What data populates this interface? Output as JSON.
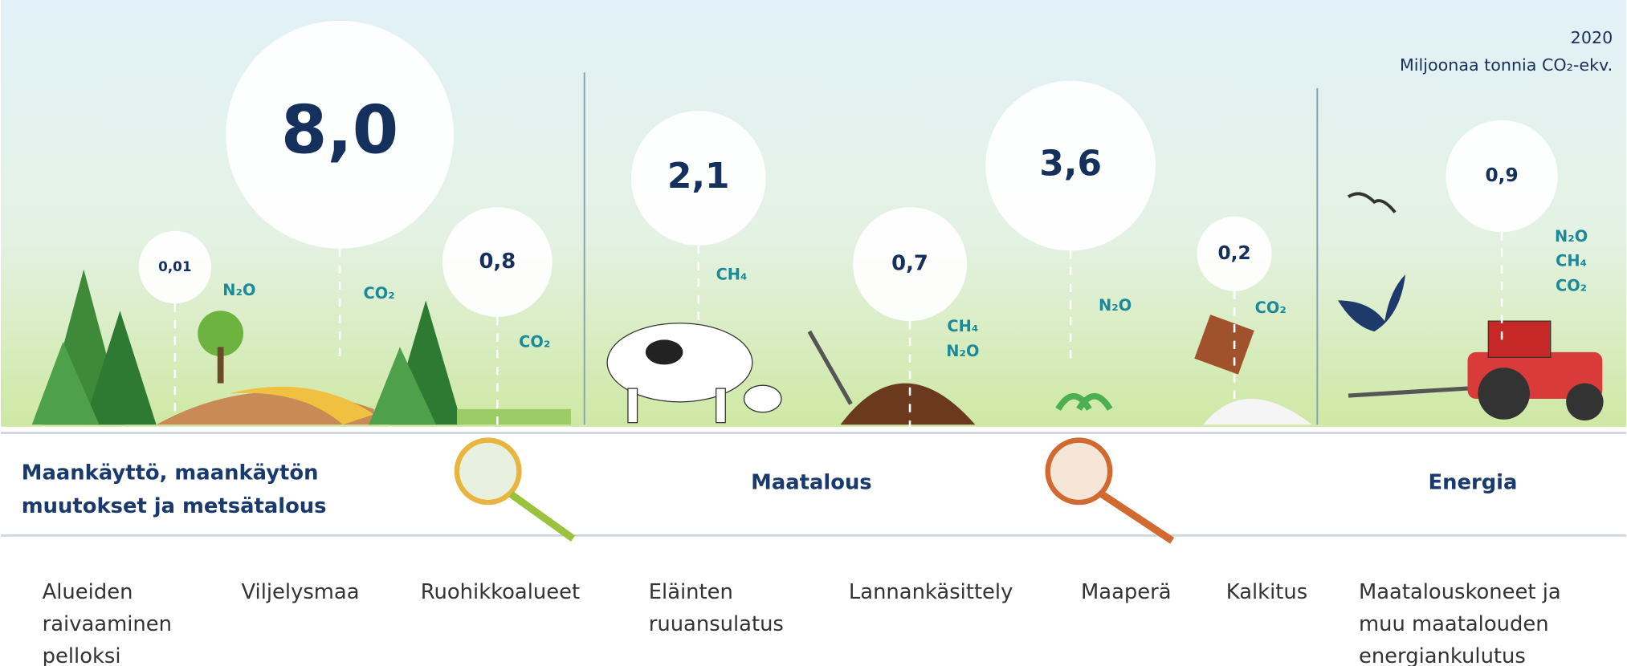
{
  "header": {
    "year": "2020",
    "unit": "Miljoonaa tonnia CO₂-ekv."
  },
  "sectors": [
    {
      "label_lines": [
        "Maankäyttö, maankäytön",
        "muutokset ja metsätalous"
      ]
    },
    {
      "label_lines": [
        "Maatalous"
      ]
    },
    {
      "label_lines": [
        "Energia"
      ]
    }
  ],
  "items": [
    {
      "value": "0,01",
      "gases": [
        "N₂O"
      ],
      "label_lines": [
        "Alueiden",
        "raivaaminen",
        "pelloksi"
      ]
    },
    {
      "value": "8,0",
      "gases": [
        "CO₂"
      ],
      "label_lines": [
        "Viljelysmaa"
      ]
    },
    {
      "value": "0,8",
      "gases": [
        "CO₂"
      ],
      "label_lines": [
        "Ruohikkoalueet"
      ]
    },
    {
      "value": "2,1",
      "gases": [
        "CH₄"
      ],
      "label_lines": [
        "Eläinten",
        "ruuansulatus"
      ]
    },
    {
      "value": "0,7",
      "gases": [
        "CH₄",
        "N₂O"
      ],
      "label_lines": [
        "Lannankäsittely"
      ]
    },
    {
      "value": "3,6",
      "gases": [
        "N₂O"
      ],
      "label_lines": [
        "Maaperä"
      ]
    },
    {
      "value": "0,2",
      "gases": [
        "CO₂"
      ],
      "label_lines": [
        "Kalkitus"
      ]
    },
    {
      "value": "0,9",
      "gases": [
        "N₂O",
        "CH₄",
        "CO₂"
      ],
      "label_lines": [
        "Maatalouskoneet ja",
        "muu maatalouden",
        "energiankulutus"
      ]
    }
  ]
}
